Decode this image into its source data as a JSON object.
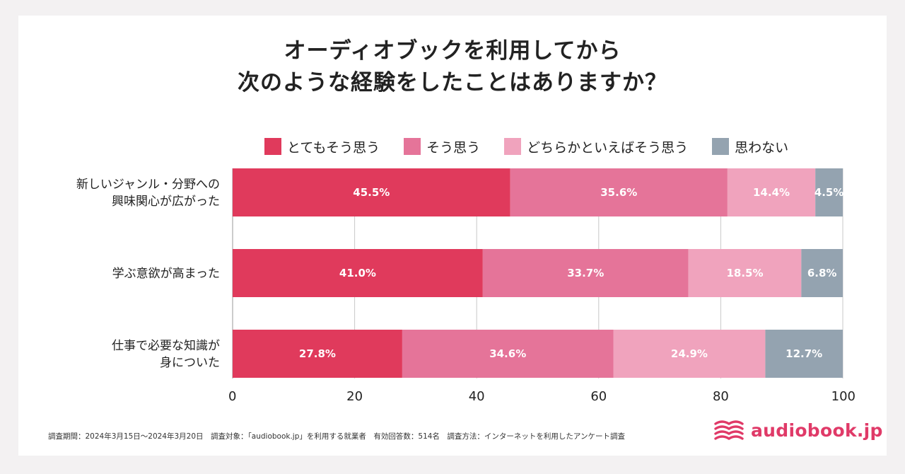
{
  "title": {
    "line1": "オーディオブックを利用してから",
    "line2": "次のような経験をしたことはありますか？"
  },
  "legend": [
    {
      "label": "とてもそう思う",
      "color": "#e03a5c"
    },
    {
      "label": "そう思う",
      "color": "#e57499"
    },
    {
      "label": "どちらかといえばそう思う",
      "color": "#f0a3bd"
    },
    {
      "label": "思わない",
      "color": "#94a3b0"
    }
  ],
  "chart_data": {
    "type": "bar",
    "orientation": "horizontal",
    "stacked": true,
    "categories": [
      [
        "新しいジャンル・分野への",
        "興味関心が広がった"
      ],
      [
        "学ぶ意欲が高まった"
      ],
      [
        "仕事で必要な知識が",
        "身についた"
      ]
    ],
    "series": [
      {
        "name": "とてもそう思う",
        "color": "#e03a5c",
        "values": [
          45.5,
          41.0,
          27.8
        ]
      },
      {
        "name": "そう思う",
        "color": "#e57499",
        "values": [
          35.6,
          33.7,
          34.6
        ]
      },
      {
        "name": "どちらかといえばそう思う",
        "color": "#f0a3bd",
        "values": [
          14.4,
          18.5,
          24.9
        ]
      },
      {
        "name": "思わない",
        "color": "#94a3b0",
        "values": [
          4.5,
          6.8,
          12.7
        ]
      }
    ],
    "value_labels": [
      [
        "45.5%",
        "35.6%",
        "14.4%",
        "4.5%"
      ],
      [
        "41.0%",
        "33.7%",
        "18.5%",
        "6.8%"
      ],
      [
        "27.8%",
        "34.6%",
        "24.9%",
        "12.7%"
      ]
    ],
    "xlim": [
      0,
      100
    ],
    "xticks": [
      0,
      20,
      40,
      60,
      80,
      100
    ],
    "grid": true,
    "legend_position": "top"
  },
  "footer": "調査期間：2024年3月15日〜2024年3月20日　調査対象：「audiobook.jp」を利用する就業者　有効回答数：514名　調査方法：インターネットを利用したアンケート調査",
  "logo": {
    "text": "audiobook.jp",
    "color": "#e03a68"
  }
}
